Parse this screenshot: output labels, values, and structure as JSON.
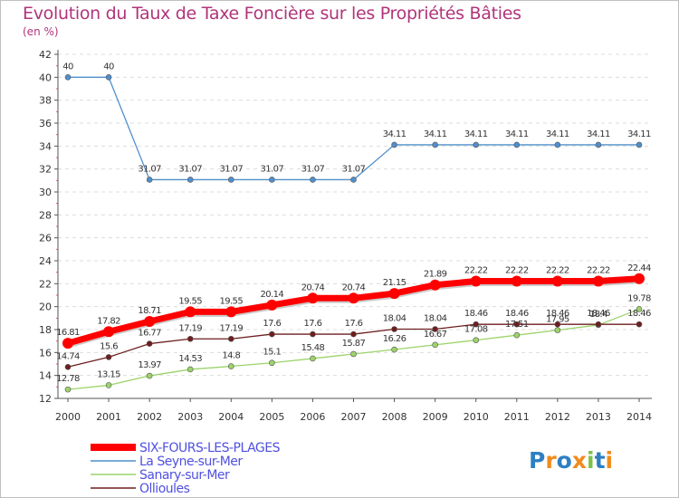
{
  "title": "Evolution du Taux de Taxe Foncière sur les Propriétés Bâties",
  "unit_label": "(en %)",
  "logo_text": "Proxiti",
  "chart_data": {
    "type": "line",
    "title": "Evolution du Taux de Taxe Foncière sur les Propriétés Bâties",
    "ylabel": "(en %)",
    "xlabel": "",
    "ylim": [
      12,
      42
    ],
    "ytick_step": 2,
    "x": [
      2000,
      2001,
      2002,
      2003,
      2004,
      2005,
      2006,
      2007,
      2008,
      2009,
      2010,
      2011,
      2012,
      2013,
      2014
    ],
    "series": [
      {
        "name": "La Seyne-sur-Mer",
        "color": "#4f8fcb",
        "values": [
          40,
          40,
          31.07,
          31.07,
          31.07,
          31.07,
          31.07,
          31.07,
          34.11,
          34.11,
          34.11,
          34.11,
          34.11,
          34.11,
          34.11
        ],
        "labels": [
          "40",
          "40",
          "31.07",
          "31.07",
          "31.07",
          "31.07",
          "31.07",
          "31.07",
          "34.11",
          "34.11",
          "34.11",
          "34.11",
          "34.11",
          "34.11",
          "34.11"
        ]
      },
      {
        "name": "Sanary-sur-Mer",
        "color": "#9cd36a",
        "values": [
          12.78,
          13.15,
          13.97,
          14.53,
          14.8,
          15.1,
          15.48,
          15.87,
          16.26,
          16.67,
          17.08,
          17.51,
          17.95,
          18.4,
          19.78
        ],
        "labels": [
          "12.78",
          "13.15",
          "13.97",
          "14.53",
          "14.8",
          "15.1",
          "15.48",
          "15.87",
          "16.26",
          "16.67",
          "17.08",
          "17.51",
          "17.95",
          "18.4",
          "19.78"
        ]
      },
      {
        "name": "Ollioules",
        "color": "#6e1e1e",
        "values": [
          14.74,
          15.6,
          16.77,
          17.19,
          17.19,
          17.6,
          17.6,
          17.6,
          18.04,
          18.04,
          18.46,
          18.46,
          18.46,
          18.46,
          18.46
        ],
        "labels": [
          "14.74",
          "15.6",
          "16.77",
          "17.19",
          "17.19",
          "17.6",
          "17.6",
          "17.6",
          "18.04",
          "18.04",
          "18.46",
          "18.46",
          "18.46",
          "18.46",
          "18.46"
        ]
      },
      {
        "name": "SIX-FOURS-LES-PLAGES",
        "color": "#ff0000",
        "values": [
          16.81,
          17.82,
          18.71,
          19.55,
          19.55,
          20.14,
          20.74,
          20.74,
          21.15,
          21.89,
          22.22,
          22.22,
          22.22,
          22.22,
          22.44
        ],
        "labels": [
          "16.81",
          "17.82",
          "18.71",
          "19.55",
          "19.55",
          "20.14",
          "20.74",
          "20.74",
          "21.15",
          "21.89",
          "22.22",
          "22.22",
          "22.22",
          "22.22",
          "22.44"
        ]
      }
    ],
    "legend": [
      {
        "name": "SIX-FOURS-LES-PLAGES",
        "color": "#ff0000"
      },
      {
        "name": "La Seyne-sur-Mer",
        "color": "#4f8fcb"
      },
      {
        "name": "Sanary-sur-Mer",
        "color": "#9cd36a"
      },
      {
        "name": "Ollioules",
        "color": "#6e1e1e"
      }
    ],
    "legend_position": "bottom-left",
    "legend_text_color": "#5050e0",
    "grid": "horizontal-dashed"
  }
}
